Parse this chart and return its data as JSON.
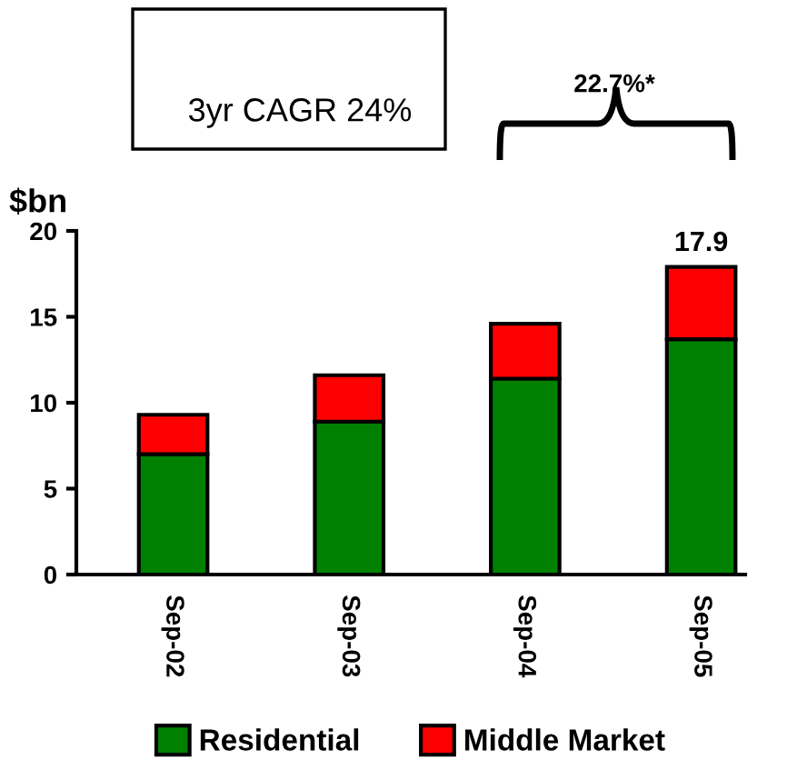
{
  "chart_data": {
    "type": "bar",
    "stacked": true,
    "ylabel": "$bn",
    "categories": [
      "Sep-02",
      "Sep-03",
      "Sep-04",
      "Sep-05"
    ],
    "series": [
      {
        "name": "Residential",
        "color": "#008000",
        "values": [
          7.0,
          8.9,
          11.4,
          13.7
        ]
      },
      {
        "name": "Middle Market",
        "color": "#ff0000",
        "values": [
          2.3,
          2.7,
          3.2,
          4.2
        ]
      }
    ],
    "totals": [
      null,
      null,
      null,
      "17.9"
    ],
    "ylim": [
      0,
      20
    ],
    "yticks": [
      0,
      5,
      10,
      15,
      20
    ],
    "grid": false,
    "legend": "bottom",
    "annotations": [
      "3yr CAGR 24%",
      "22.7%*"
    ]
  }
}
